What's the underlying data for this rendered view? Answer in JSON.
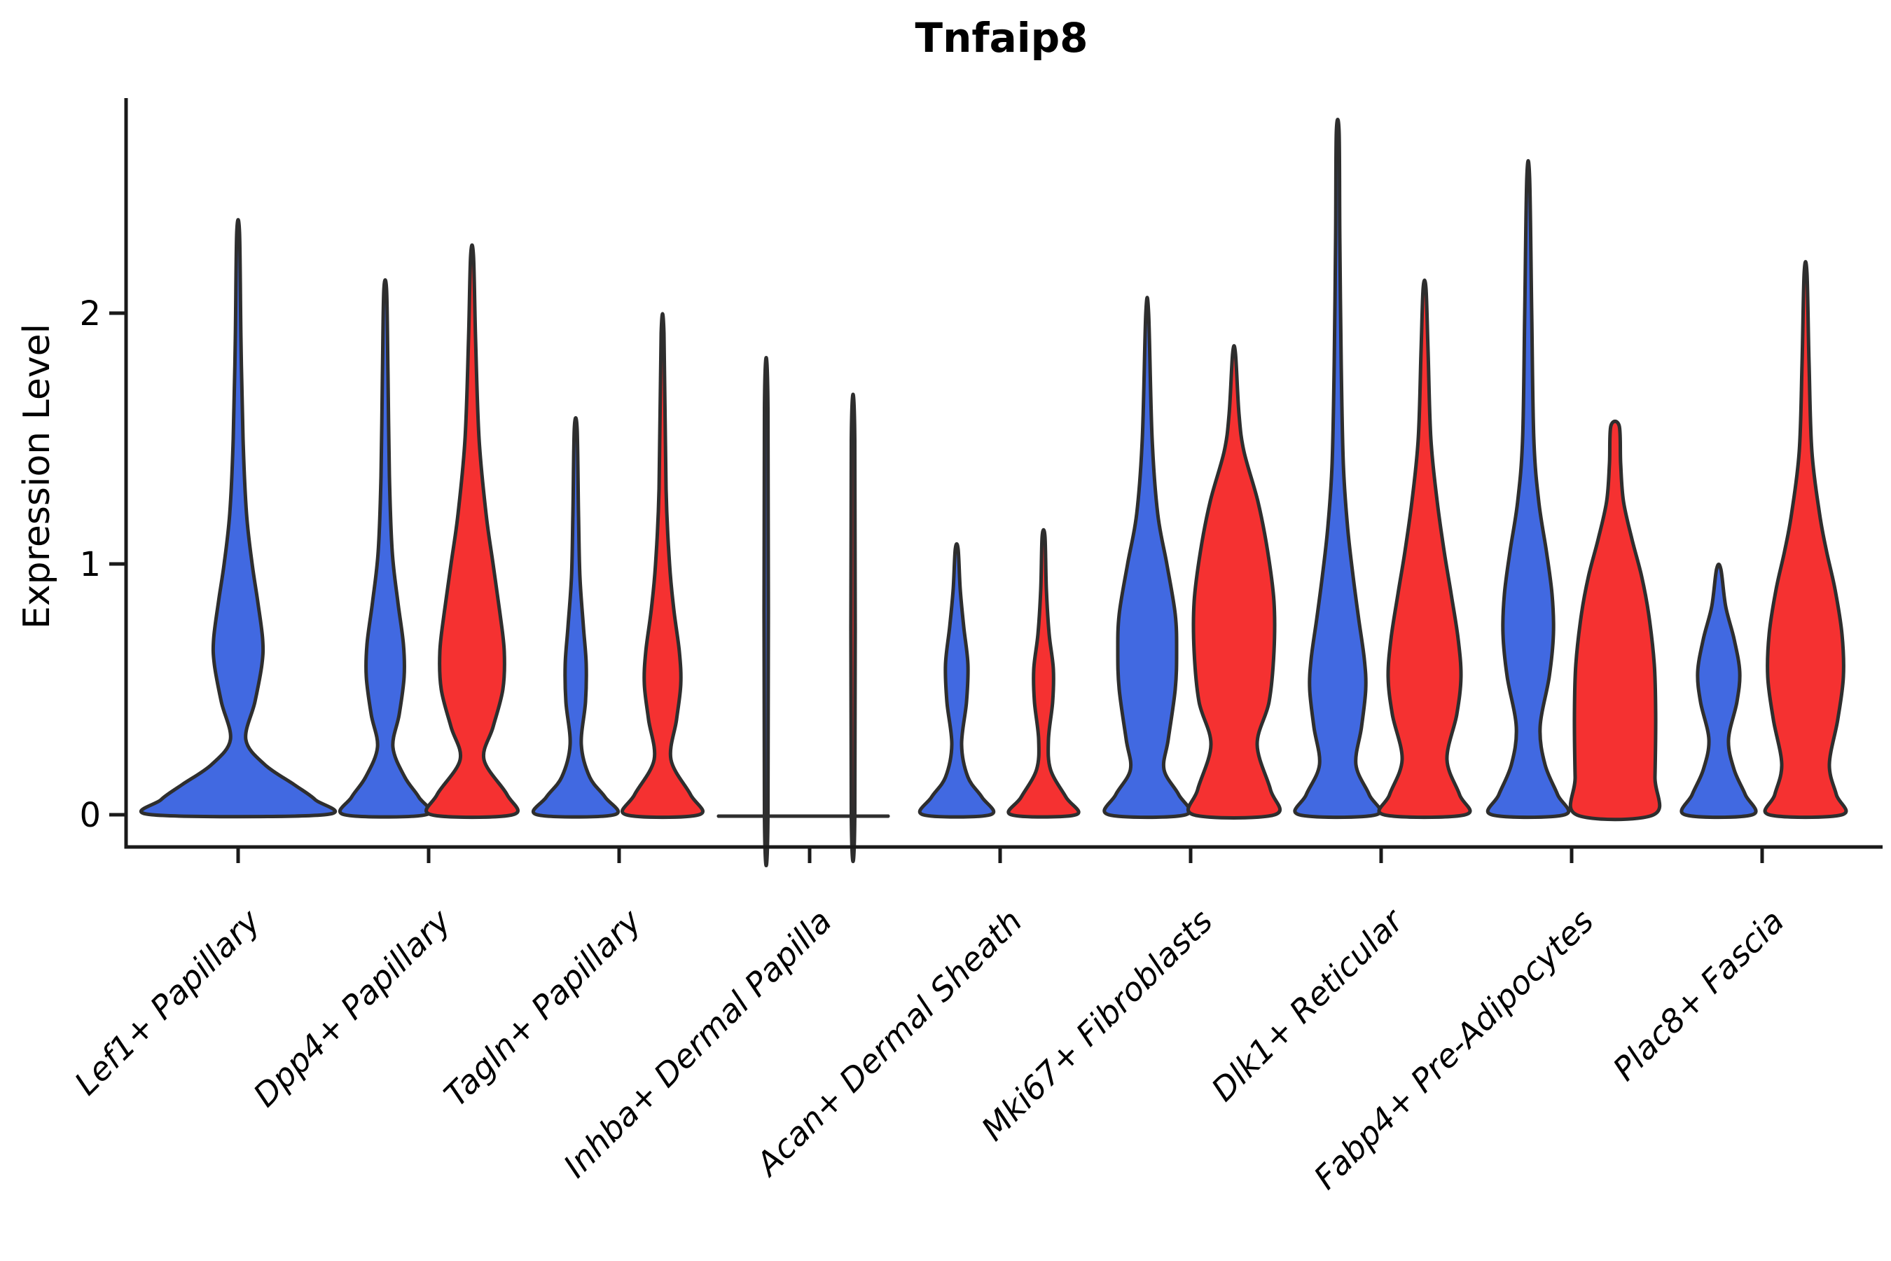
{
  "title": "Tnfaip8",
  "y_axis": {
    "label": "Expression Level",
    "tick_labels": [
      "0",
      "1",
      "2"
    ]
  },
  "x_axis": {
    "categories": [
      "Lef1+ Papillary",
      "Dpp4+ Papillary",
      "Tagln+ Papillary",
      "Inhba+ Dermal Papilla",
      "Acan+ Dermal Sheath",
      "Mki67+ Fibroblasts",
      "Dlk1+ Reticular",
      "Fabp4+ Pre-Adipocytes",
      "Plac8+ Fascia"
    ]
  },
  "colors": {
    "blue_fill": "#4169E1",
    "red_fill": "#F53131",
    "violin_stroke": "#2E2E2E",
    "axis_color": "#1A1A1A"
  },
  "chart_data": {
    "type": "violin",
    "title": "Tnfaip8",
    "ylabel": "Expression Level",
    "xlabel": "",
    "yticks": [
      0,
      1,
      2
    ],
    "ylim": [
      -0.05,
      2.86
    ],
    "grid": false,
    "legend": "none",
    "categories": [
      "Lef1+ Papillary",
      "Dpp4+ Papillary",
      "Tagln+ Papillary",
      "Inhba+ Dermal Papilla",
      "Acan+ Dermal Sheath",
      "Mki67+ Fibroblasts",
      "Dlk1+ Reticular",
      "Fabp4+ Pre-Adipocytes",
      "Plac8+ Fascia"
    ],
    "series": [
      {
        "name": "blue",
        "color": "#4169E1",
        "max_expression": [
          2.32,
          2.09,
          1.54,
          1.62,
          1.06,
          2.0,
          2.72,
          2.54,
          0.98
        ]
      },
      {
        "name": "red",
        "color": "#F53131",
        "max_expression": [
          null,
          2.23,
          1.92,
          1.49,
          1.11,
          1.84,
          2.1,
          1.55,
          2.16
        ]
      }
    ],
    "violins": [
      {
        "group": 0,
        "side": "single",
        "color": "blue",
        "profile": [
          [
            0,
            123
          ],
          [
            0.06,
            110
          ],
          [
            0.12,
            80
          ],
          [
            0.2,
            38
          ],
          [
            0.3,
            11
          ],
          [
            0.45,
            24
          ],
          [
            0.6,
            34
          ],
          [
            0.7,
            35
          ],
          [
            0.85,
            28
          ],
          [
            1.0,
            20
          ],
          [
            1.2,
            12
          ],
          [
            1.5,
            7
          ],
          [
            1.9,
            4
          ],
          [
            2.32,
            2
          ]
        ]
      },
      {
        "group": 1,
        "side": "left",
        "color": "blue",
        "profile": [
          [
            0,
            58
          ],
          [
            0.07,
            48
          ],
          [
            0.15,
            28
          ],
          [
            0.27,
            11
          ],
          [
            0.4,
            20
          ],
          [
            0.55,
            27
          ],
          [
            0.68,
            26
          ],
          [
            0.85,
            18
          ],
          [
            1.05,
            10
          ],
          [
            1.35,
            6
          ],
          [
            1.75,
            4
          ],
          [
            2.09,
            2
          ]
        ]
      },
      {
        "group": 1,
        "side": "right",
        "color": "red",
        "profile": [
          [
            0,
            58
          ],
          [
            0.08,
            50
          ],
          [
            0.22,
            17
          ],
          [
            0.35,
            30
          ],
          [
            0.5,
            44
          ],
          [
            0.65,
            46
          ],
          [
            0.8,
            40
          ],
          [
            1.0,
            30
          ],
          [
            1.2,
            20
          ],
          [
            1.5,
            10
          ],
          [
            1.9,
            5
          ],
          [
            2.23,
            2
          ]
        ]
      },
      {
        "group": 2,
        "side": "left",
        "color": "blue",
        "profile": [
          [
            0,
            55
          ],
          [
            0.07,
            42
          ],
          [
            0.15,
            20
          ],
          [
            0.28,
            8
          ],
          [
            0.45,
            14
          ],
          [
            0.6,
            15
          ],
          [
            0.75,
            11
          ],
          [
            0.95,
            6
          ],
          [
            1.2,
            4
          ],
          [
            1.54,
            2
          ]
        ]
      },
      {
        "group": 2,
        "side": "right",
        "color": "red",
        "profile": [
          [
            0,
            52
          ],
          [
            0.08,
            40
          ],
          [
            0.22,
            12
          ],
          [
            0.38,
            20
          ],
          [
            0.52,
            26
          ],
          [
            0.65,
            24
          ],
          [
            0.82,
            16
          ],
          [
            1.0,
            10
          ],
          [
            1.3,
            5
          ],
          [
            1.92,
            2
          ]
        ]
      },
      {
        "group": 3,
        "side": "left",
        "color": "blue",
        "profile": [
          [
            0,
            2.5
          ],
          [
            1.62,
            2.5
          ]
        ],
        "degenerate": true
      },
      {
        "group": 3,
        "side": "right",
        "color": "red",
        "profile": [
          [
            0,
            2.5
          ],
          [
            1.49,
            2.5
          ]
        ],
        "degenerate": true
      },
      {
        "group": 4,
        "side": "left",
        "color": "blue",
        "profile": [
          [
            0,
            48
          ],
          [
            0.07,
            36
          ],
          [
            0.15,
            16
          ],
          [
            0.28,
            7
          ],
          [
            0.45,
            14
          ],
          [
            0.6,
            16
          ],
          [
            0.75,
            10
          ],
          [
            0.9,
            5
          ],
          [
            1.06,
            2
          ]
        ]
      },
      {
        "group": 4,
        "side": "right",
        "color": "red",
        "profile": [
          [
            0,
            46
          ],
          [
            0.07,
            32
          ],
          [
            0.18,
            10
          ],
          [
            0.3,
            7
          ],
          [
            0.45,
            13
          ],
          [
            0.58,
            14
          ],
          [
            0.72,
            8
          ],
          [
            0.9,
            4
          ],
          [
            1.11,
            2
          ]
        ]
      },
      {
        "group": 5,
        "side": "left",
        "color": "blue",
        "profile": [
          [
            0,
            55
          ],
          [
            0.08,
            45
          ],
          [
            0.18,
            24
          ],
          [
            0.3,
            30
          ],
          [
            0.5,
            40
          ],
          [
            0.65,
            42
          ],
          [
            0.8,
            40
          ],
          [
            1.0,
            28
          ],
          [
            1.2,
            15
          ],
          [
            1.5,
            7
          ],
          [
            2.0,
            2
          ]
        ]
      },
      {
        "group": 5,
        "side": "right",
        "color": "red",
        "profile": [
          [
            0,
            58
          ],
          [
            0.1,
            52
          ],
          [
            0.28,
            33
          ],
          [
            0.45,
            50
          ],
          [
            0.65,
            57
          ],
          [
            0.85,
            57
          ],
          [
            1.05,
            48
          ],
          [
            1.25,
            34
          ],
          [
            1.45,
            14
          ],
          [
            1.6,
            7
          ],
          [
            1.84,
            2
          ]
        ]
      },
      {
        "group": 6,
        "side": "left",
        "color": "blue",
        "profile": [
          [
            0,
            55
          ],
          [
            0.08,
            45
          ],
          [
            0.2,
            26
          ],
          [
            0.35,
            34
          ],
          [
            0.5,
            40
          ],
          [
            0.62,
            38
          ],
          [
            0.78,
            30
          ],
          [
            0.95,
            22
          ],
          [
            1.15,
            14
          ],
          [
            1.4,
            8
          ],
          [
            1.8,
            5
          ],
          [
            2.3,
            3
          ],
          [
            2.72,
            2
          ]
        ]
      },
      {
        "group": 6,
        "side": "right",
        "color": "red",
        "profile": [
          [
            0,
            58
          ],
          [
            0.08,
            50
          ],
          [
            0.22,
            32
          ],
          [
            0.4,
            46
          ],
          [
            0.55,
            52
          ],
          [
            0.7,
            48
          ],
          [
            0.88,
            38
          ],
          [
            1.05,
            28
          ],
          [
            1.25,
            18
          ],
          [
            1.5,
            9
          ],
          [
            1.85,
            5
          ],
          [
            2.1,
            2
          ]
        ]
      },
      {
        "group": 7,
        "side": "left",
        "color": "blue",
        "profile": [
          [
            0,
            52
          ],
          [
            0.08,
            42
          ],
          [
            0.2,
            24
          ],
          [
            0.35,
            17
          ],
          [
            0.55,
            30
          ],
          [
            0.72,
            36
          ],
          [
            0.88,
            34
          ],
          [
            1.05,
            26
          ],
          [
            1.25,
            15
          ],
          [
            1.5,
            8
          ],
          [
            2.0,
            5
          ],
          [
            2.54,
            2
          ]
        ]
      },
      {
        "group": 7,
        "side": "right",
        "color": "red",
        "profile": [
          [
            0,
            55
          ],
          [
            0.15,
            57
          ],
          [
            0.4,
            58
          ],
          [
            0.6,
            56
          ],
          [
            0.8,
            48
          ],
          [
            0.95,
            38
          ],
          [
            1.1,
            24
          ],
          [
            1.25,
            12
          ],
          [
            1.4,
            8
          ],
          [
            1.55,
            6
          ]
        ]
      },
      {
        "group": 8,
        "side": "left",
        "color": "blue",
        "profile": [
          [
            0,
            48
          ],
          [
            0.08,
            38
          ],
          [
            0.18,
            22
          ],
          [
            0.3,
            14
          ],
          [
            0.45,
            26
          ],
          [
            0.57,
            30
          ],
          [
            0.7,
            22
          ],
          [
            0.83,
            10
          ],
          [
            0.98,
            3
          ]
        ]
      },
      {
        "group": 8,
        "side": "right",
        "color": "red",
        "profile": [
          [
            0,
            52
          ],
          [
            0.08,
            44
          ],
          [
            0.2,
            34
          ],
          [
            0.38,
            46
          ],
          [
            0.55,
            54
          ],
          [
            0.72,
            52
          ],
          [
            0.9,
            42
          ],
          [
            1.05,
            30
          ],
          [
            1.2,
            20
          ],
          [
            1.45,
            9
          ],
          [
            1.8,
            5
          ],
          [
            2.16,
            2
          ]
        ]
      }
    ]
  }
}
